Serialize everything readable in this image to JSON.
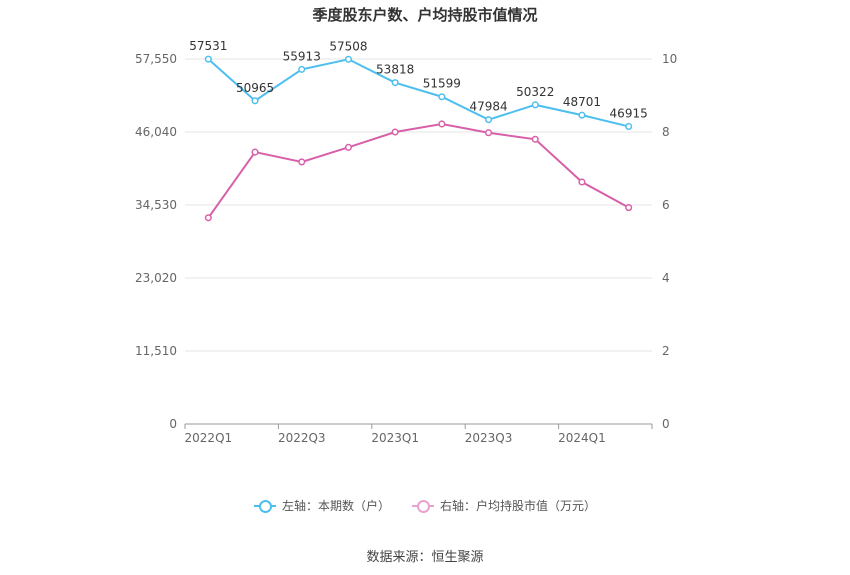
{
  "chart_data": {
    "type": "line",
    "title": "季度股东户数、户均持股市值情况",
    "x": [
      "2022Q1",
      "2022Q2",
      "2022Q3",
      "2022Q4",
      "2023Q1",
      "2023Q2",
      "2023Q3",
      "2023Q4",
      "2024Q1",
      "2024Q2"
    ],
    "x_tick_labels": [
      "2022Q1",
      "2022Q3",
      "2023Q1",
      "2023Q3",
      "2024Q1"
    ],
    "left_axis": {
      "ticks": [
        0,
        11510,
        23020,
        34530,
        46040,
        57550
      ],
      "tick_labels": [
        "0",
        "11,510",
        "23,020",
        "34,530",
        "46,040",
        "57,550"
      ],
      "ylim": [
        0,
        57550
      ]
    },
    "right_axis": {
      "ticks": [
        0,
        2,
        4,
        6,
        8,
        10
      ],
      "tick_labels": [
        "0",
        "2",
        "4",
        "6",
        "8",
        "10"
      ],
      "ylim": [
        0,
        10
      ]
    },
    "series": [
      {
        "name": "左轴：本期数（户）",
        "axis": "left",
        "color": "#4dbfef",
        "values": [
          57531,
          50965,
          55913,
          57508,
          53818,
          51599,
          47984,
          50322,
          48701,
          46915
        ],
        "labels": [
          "57531",
          "50965",
          "55913",
          "57508",
          "53818",
          "51599",
          "47984",
          "50322",
          "48701",
          "46915"
        ]
      },
      {
        "name": "右轴：户均持股市值（万元）",
        "axis": "right",
        "color": "#d85fa8",
        "values": [
          5.65,
          7.45,
          7.18,
          7.58,
          8.0,
          8.22,
          7.98,
          7.8,
          6.63,
          5.93
        ]
      }
    ],
    "grid": true,
    "legend_position": "bottom"
  },
  "legend": {
    "left_label": "左轴：本期数（户）",
    "right_label": "右轴：户均持股市值（万元）",
    "left_color": "#4dbfef",
    "right_color": "#e7a3cf"
  },
  "source": "数据来源：恒生聚源"
}
